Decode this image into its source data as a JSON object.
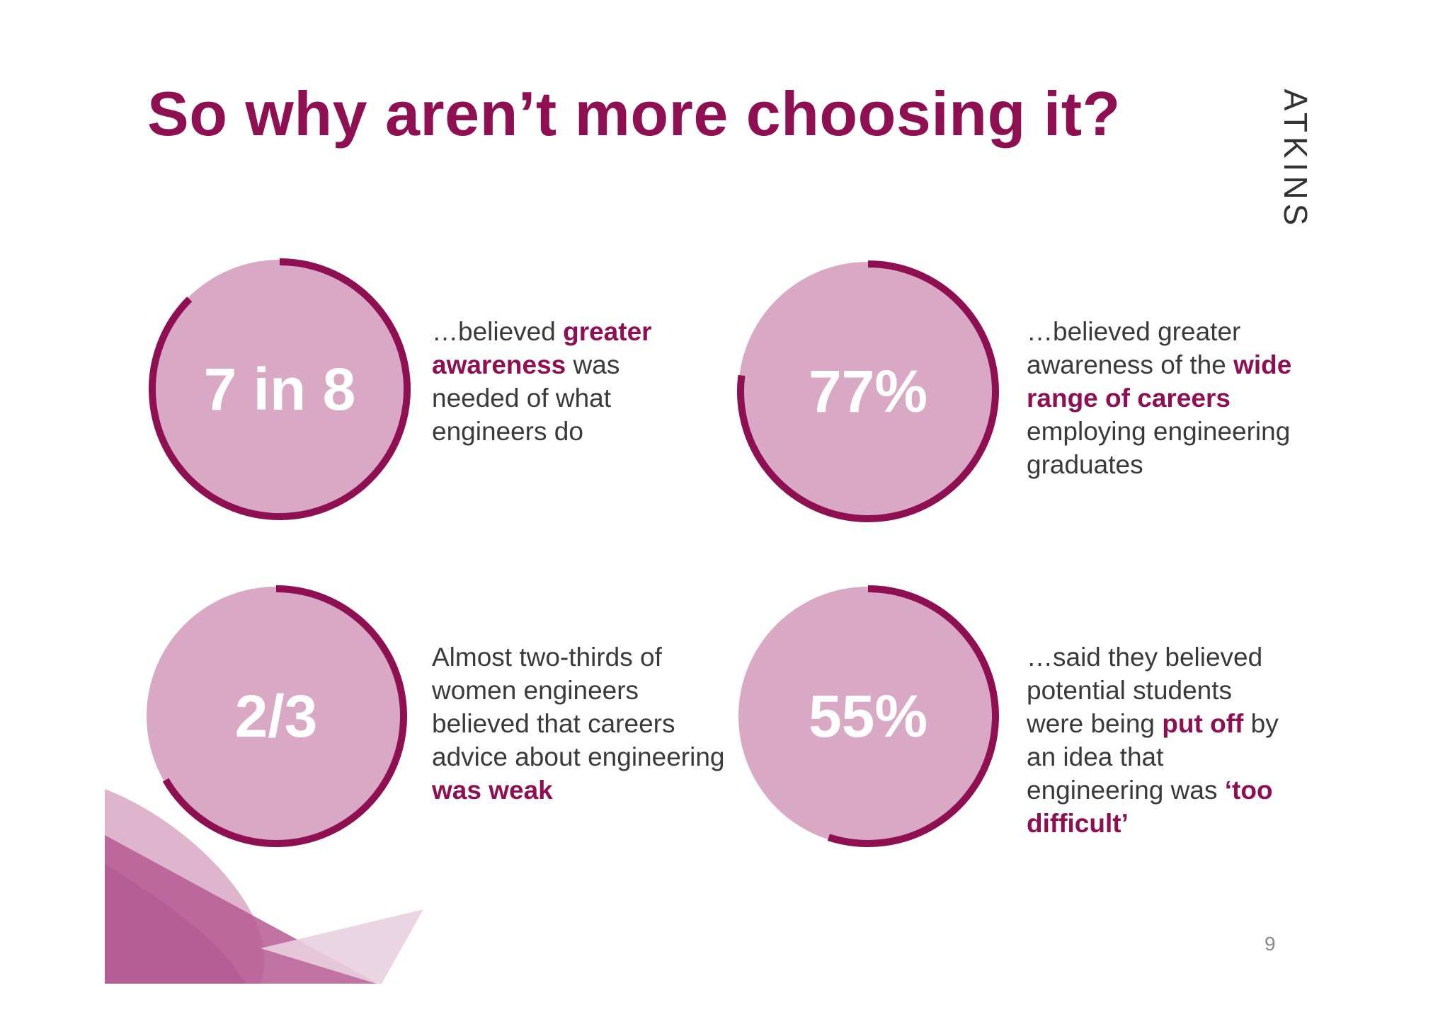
{
  "slide": {
    "title": "So why aren’t more choosing it?",
    "logo": "ATKINS",
    "page_number": "9",
    "colors": {
      "accent": "#8e1053",
      "circle_fill": "#d9a8c4",
      "text": "#3a3a3a"
    }
  },
  "stats": [
    {
      "value": "7 in 8",
      "fraction": 0.875,
      "desc": {
        "p1": "…believed ",
        "h1": "greater awareness",
        "p2": " was needed of what engineers do"
      }
    },
    {
      "value": "77%",
      "fraction": 0.77,
      "desc": {
        "p1": "…believed greater awareness of the ",
        "h1": "wide range of careers",
        "p2": " employing engineering graduates"
      }
    },
    {
      "value": "2/3",
      "fraction": 0.6667,
      "desc": {
        "p1": "Almost two-thirds of women engineers believed that careers advice about engineering ",
        "h1": "was weak",
        "p2": ""
      }
    },
    {
      "value": "55%",
      "fraction": 0.55,
      "desc": {
        "p1": "…said they believed potential students were being ",
        "h1": "put off",
        "p2": " by an idea that engineering was ",
        "h2": "‘too difficult’"
      }
    }
  ]
}
